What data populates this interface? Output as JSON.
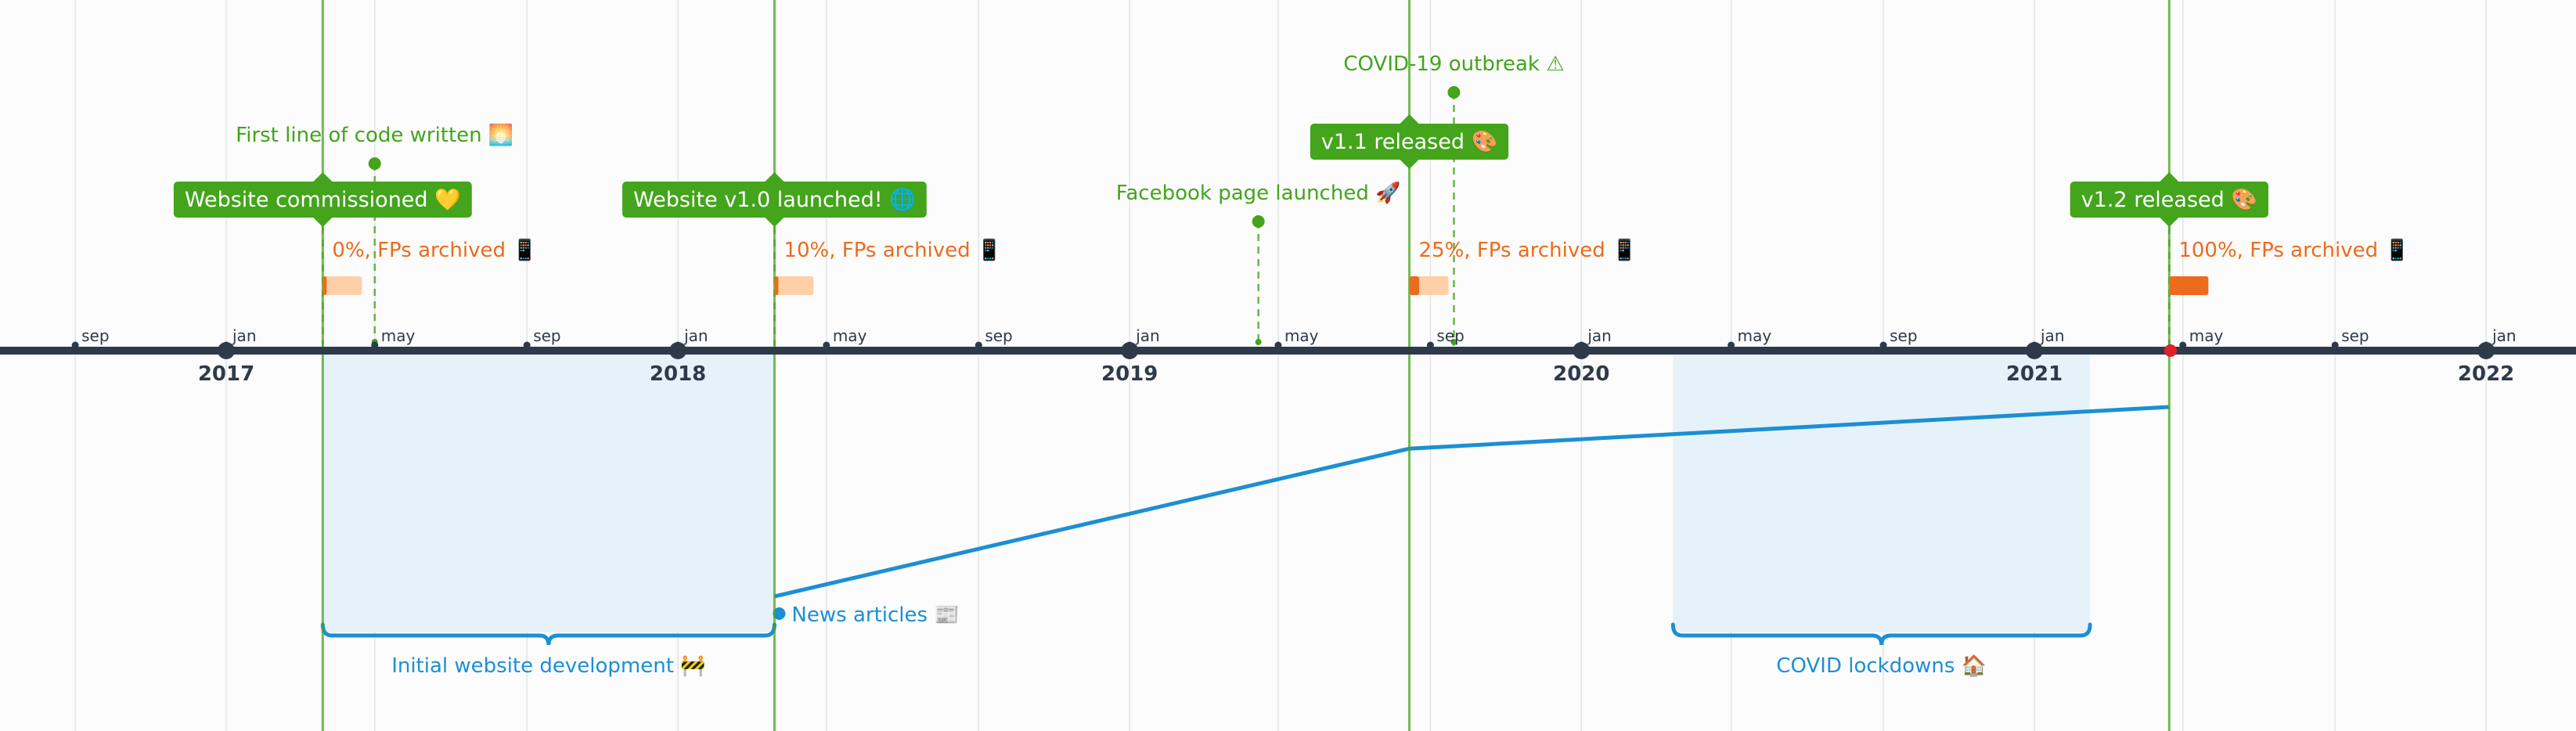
{
  "chart_data": {
    "type": "timeline",
    "x_axis": {
      "range": [
        "2016-06-15",
        "2022-03-15"
      ],
      "year_ticks": [
        {
          "date": "2017-01-01",
          "label": "2017"
        },
        {
          "date": "2018-01-01",
          "label": "2018"
        },
        {
          "date": "2019-01-01",
          "label": "2019"
        },
        {
          "date": "2020-01-01",
          "label": "2020"
        },
        {
          "date": "2021-01-01",
          "label": "2021"
        },
        {
          "date": "2022-01-01",
          "label": "2022"
        }
      ],
      "month_ticks": [
        {
          "date": "2016-09-01",
          "label": "sep"
        },
        {
          "date": "2017-01-01",
          "label": "jan"
        },
        {
          "date": "2017-05-01",
          "label": "may"
        },
        {
          "date": "2017-09-01",
          "label": "sep"
        },
        {
          "date": "2018-01-01",
          "label": "jan"
        },
        {
          "date": "2018-05-01",
          "label": "may"
        },
        {
          "date": "2018-09-01",
          "label": "sep"
        },
        {
          "date": "2019-01-01",
          "label": "jan"
        },
        {
          "date": "2019-05-01",
          "label": "may"
        },
        {
          "date": "2019-09-01",
          "label": "sep"
        },
        {
          "date": "2020-01-01",
          "label": "jan"
        },
        {
          "date": "2020-05-01",
          "label": "may"
        },
        {
          "date": "2020-09-01",
          "label": "sep"
        },
        {
          "date": "2021-01-01",
          "label": "jan"
        },
        {
          "date": "2021-05-01",
          "label": "may"
        },
        {
          "date": "2021-09-01",
          "label": "sep"
        },
        {
          "date": "2022-01-01",
          "label": "jan"
        }
      ],
      "today": "2021-04-21",
      "grid": true
    },
    "milestones": [
      {
        "date": "2017-03-20",
        "label": "Website commissioned",
        "icon": "💛",
        "level": 3
      },
      {
        "date": "2018-03-20",
        "label": "Website v1.0 launched!",
        "icon": "🌐",
        "level": 3
      },
      {
        "date": "2019-08-15",
        "label": "v1.1 released",
        "icon": "🎨",
        "level": 2
      },
      {
        "date": "2021-04-20",
        "label": "v1.2 released",
        "icon": "🎨",
        "level": 3
      }
    ],
    "events": [
      {
        "date": "2017-05-01",
        "label": "First line of code written",
        "icon": "🌅",
        "level": 2
      },
      {
        "date": "2019-04-15",
        "label": "Facebook page launched",
        "icon": "🚀",
        "level": 3
      },
      {
        "date": "2019-09-20",
        "label": "COVID-19 outbreak",
        "icon": "⚠",
        "level": 1
      }
    ],
    "progress": [
      {
        "date": "2017-03-20",
        "label": "0%, FPs archived",
        "icon": "📱",
        "value": 0
      },
      {
        "date": "2018-03-20",
        "label": "10%, FPs archived",
        "icon": "📱",
        "value": 0.1
      },
      {
        "date": "2019-08-15",
        "label": "25%, FPs archived",
        "icon": "📱",
        "value": 0.25
      },
      {
        "date": "2021-04-20",
        "label": "100%, FPs archived",
        "icon": "📱",
        "value": 1.0
      }
    ],
    "spans": [
      {
        "start": "2017-03-20",
        "end": "2018-03-20",
        "label": "Initial website development",
        "icon": "🚧"
      },
      {
        "start": "2020-03-15",
        "end": "2021-02-15",
        "label": "COVID lockdowns",
        "icon": "🏠"
      }
    ],
    "series": [
      {
        "name": "News articles",
        "icon": "📰",
        "points": [
          {
            "x": "2018-03-20",
            "y": 0
          },
          {
            "x": "2019-08-15",
            "y": 0.78
          },
          {
            "x": "2021-04-20",
            "y": 1.0
          }
        ],
        "ylim": [
          0,
          1
        ]
      }
    ],
    "colors": {
      "milestone": "#44a41c",
      "event": "#44a41c",
      "progress": "#ec6b1c",
      "progress_track": "#ffcfa8",
      "span": "#1c8fd4",
      "span_fill": "#e6f2fa",
      "axis": "#2e3a4a",
      "today": "#e0202a",
      "grid": "#e2e4e6"
    }
  }
}
